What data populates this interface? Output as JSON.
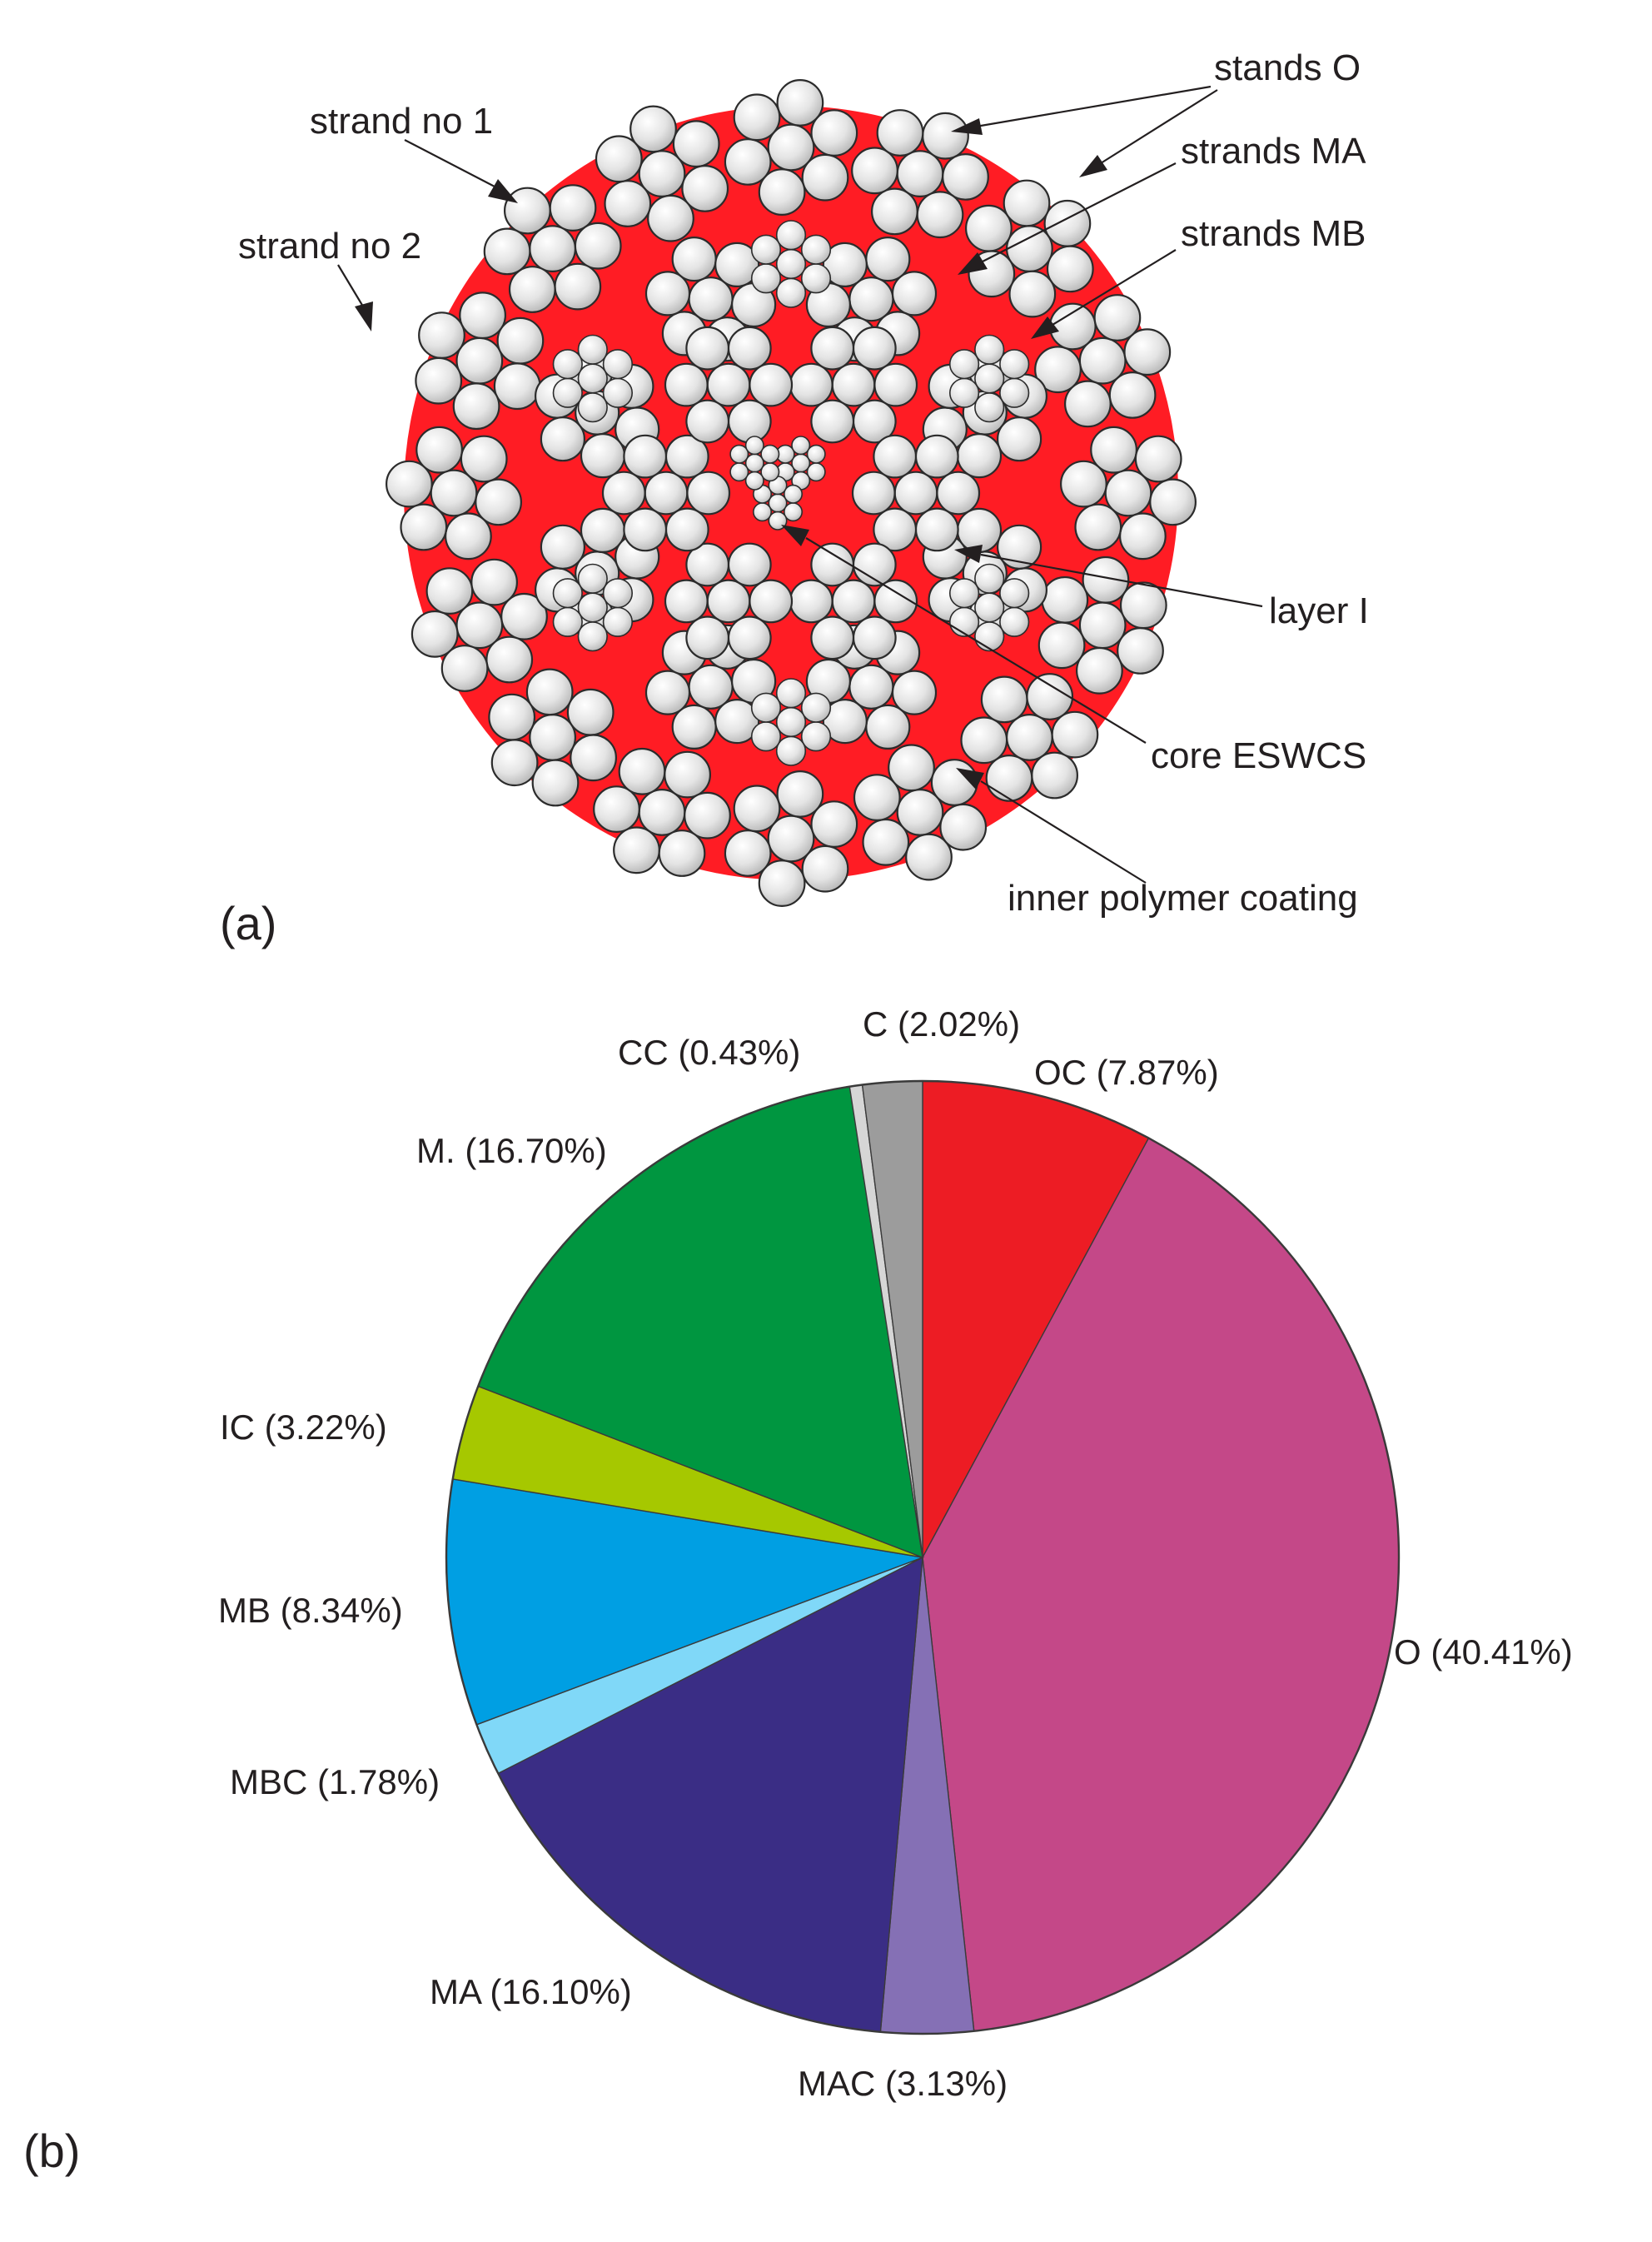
{
  "panels": {
    "a_label": "(a)",
    "b_label": "(b)"
  },
  "colors": {
    "rope_fill": "#ff1c24",
    "wire_fill": "#dcdcdc",
    "wire_stroke": "#2b2b2b"
  },
  "rope_callouts": [
    {
      "key": "stands-o",
      "text": "stands O"
    },
    {
      "key": "strands-ma",
      "text": "strands MA"
    },
    {
      "key": "strands-mb",
      "text": "strands MB"
    },
    {
      "key": "strand-no-1",
      "text": "strand no 1"
    },
    {
      "key": "strand-no-2",
      "text": "strand no 2"
    },
    {
      "key": "layer-i",
      "text": "layer I"
    },
    {
      "key": "core-eswcs",
      "text": "core ESWCS"
    },
    {
      "key": "inner-polymer-coating",
      "text": "inner polymer coating"
    }
  ],
  "chart_data": {
    "type": "pie",
    "start": "12 o'clock, clockwise",
    "slices": [
      {
        "name": "OC",
        "label": "OC (7.87%)",
        "value": 7.87,
        "color": "#ed1c24"
      },
      {
        "name": "O",
        "label": "O (40.41%)",
        "value": 40.41,
        "color": "#c44888"
      },
      {
        "name": "MAC",
        "label": "MAC (3.13%)",
        "value": 3.13,
        "color": "#8570b5"
      },
      {
        "name": "MA",
        "label": "MA (16.10%)",
        "value": 16.1,
        "color": "#3a2d85"
      },
      {
        "name": "MBC",
        "label": "MBC (1.78%)",
        "value": 1.78,
        "color": "#80d8f8"
      },
      {
        "name": "MB",
        "label": "MB (8.34%)",
        "value": 8.34,
        "color": "#009fe3"
      },
      {
        "name": "IC",
        "label": "IC (3.22%)",
        "value": 3.22,
        "color": "#a6c800"
      },
      {
        "name": "M.",
        "label": "M. (16.70%)",
        "value": 16.7,
        "color": "#009640"
      },
      {
        "name": "CC",
        "label": "CC (0.43%)",
        "value": 0.43,
        "color": "#d6d6d6"
      },
      {
        "name": "C",
        "label": "C (2.02%)",
        "value": 2.02,
        "color": "#9c9c9c"
      }
    ]
  }
}
